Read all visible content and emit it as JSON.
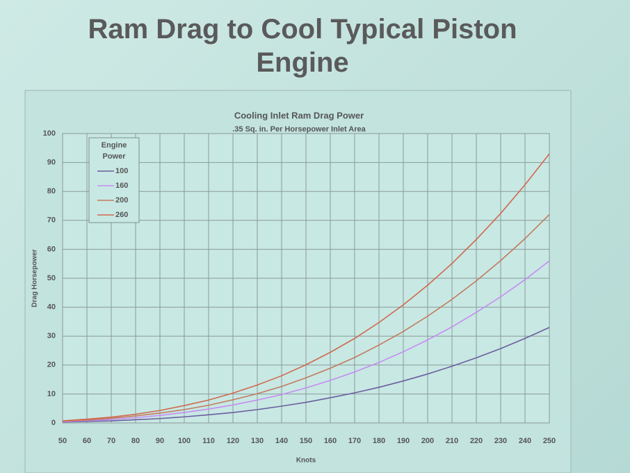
{
  "chart_data": {
    "type": "line",
    "slide_title": "Ram Drag to Cool Typical Piston Engine",
    "title": "Cooling Inlet Ram Drag Power",
    "subtitle": ".35 Sq. in. Per Horsepower Inlet Area",
    "x_label": "Knots",
    "y_label": "Drag Horsepower",
    "legend_title": [
      "Engine",
      "Power"
    ],
    "x": [
      50,
      60,
      70,
      80,
      90,
      100,
      110,
      120,
      130,
      140,
      150,
      160,
      170,
      180,
      190,
      200,
      210,
      220,
      230,
      240,
      250
    ],
    "xlim": [
      50,
      250
    ],
    "xticks": [
      50,
      60,
      70,
      80,
      90,
      100,
      110,
      120,
      130,
      140,
      150,
      160,
      170,
      180,
      190,
      200,
      210,
      220,
      230,
      240,
      250
    ],
    "ylim": [
      0,
      100
    ],
    "yticks": [
      0,
      10,
      20,
      30,
      40,
      50,
      60,
      70,
      80,
      90,
      100
    ],
    "grid": true,
    "series": [
      {
        "name": "100",
        "color": "#6a5e9e",
        "values": [
          0.3,
          0.5,
          0.7,
          1.1,
          1.5,
          2.1,
          2.8,
          3.6,
          4.6,
          5.8,
          7.1,
          8.7,
          10.4,
          12.3,
          14.5,
          16.9,
          19.6,
          22.5,
          25.7,
          29.2,
          33
        ]
      },
      {
        "name": "160",
        "color": "#c48cf2",
        "values": [
          0.4,
          0.8,
          1.2,
          1.8,
          2.6,
          3.6,
          4.8,
          6.2,
          7.9,
          9.8,
          12.1,
          14.7,
          17.6,
          20.9,
          24.6,
          28.7,
          33.2,
          38.2,
          43.6,
          49.5,
          56
        ]
      },
      {
        "name": "200",
        "color": "#c27a5e",
        "values": [
          0.6,
          1.0,
          1.6,
          2.4,
          3.4,
          4.6,
          6.1,
          8.0,
          10.1,
          12.6,
          15.6,
          18.9,
          22.6,
          26.9,
          31.6,
          36.9,
          42.7,
          49.1,
          56.1,
          63.7,
          72
        ]
      },
      {
        "name": "260",
        "color": "#d0684e",
        "values": [
          0.7,
          1.3,
          2.0,
          3.0,
          4.3,
          6.0,
          7.9,
          10.3,
          13.1,
          16.3,
          20.1,
          24.4,
          29.2,
          34.7,
          40.8,
          47.6,
          55.1,
          63.4,
          72.4,
          82.3,
          93
        ]
      }
    ]
  }
}
